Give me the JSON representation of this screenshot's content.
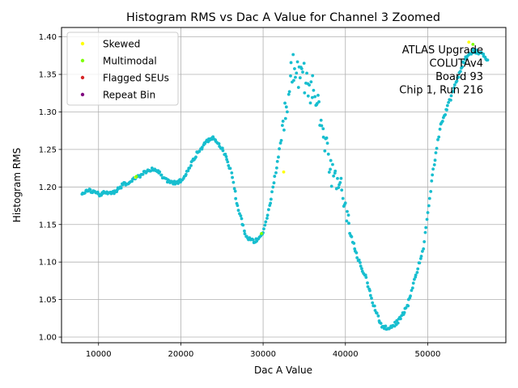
{
  "chart_data": {
    "type": "scatter",
    "title": "Histogram RMS vs Dac A Value for Channel 3 Zoomed",
    "xlabel": "Dac A Value",
    "ylabel": "Histogram RMS",
    "xlim": [
      5500,
      59500
    ],
    "ylim": [
      0.9925,
      1.4125
    ],
    "xticks": [
      10000,
      20000,
      30000,
      40000,
      50000
    ],
    "xtick_labels": [
      "10000",
      "20000",
      "30000",
      "40000",
      "50000"
    ],
    "yticks": [
      1.0,
      1.05,
      1.1,
      1.15,
      1.2,
      1.25,
      1.3,
      1.35,
      1.4
    ],
    "ytick_labels": [
      "1.00",
      "1.05",
      "1.10",
      "1.15",
      "1.20",
      "1.25",
      "1.30",
      "1.35",
      "1.40"
    ],
    "grid": true,
    "legend_position": "top-left",
    "annotation_lines": [
      "ATLAS Upgrade",
      "COLUTAv4",
      "Board 93",
      "Chip 1, Run 216"
    ],
    "series": [
      {
        "name": "Data",
        "color": "#17becf",
        "in_legend": false,
        "anchors": [
          [
            8000,
            1.193
          ],
          [
            9000,
            1.195
          ],
          [
            10000,
            1.19
          ],
          [
            11000,
            1.193
          ],
          [
            12000,
            1.193
          ],
          [
            13000,
            1.204
          ],
          [
            14000,
            1.208
          ],
          [
            15000,
            1.215
          ],
          [
            16000,
            1.222
          ],
          [
            17000,
            1.224
          ],
          [
            18000,
            1.211
          ],
          [
            19000,
            1.205
          ],
          [
            20000,
            1.208
          ],
          [
            21000,
            1.225
          ],
          [
            22000,
            1.245
          ],
          [
            23000,
            1.26
          ],
          [
            24000,
            1.265
          ],
          [
            25000,
            1.252
          ],
          [
            26000,
            1.225
          ],
          [
            27000,
            1.17
          ],
          [
            28000,
            1.132
          ],
          [
            29000,
            1.127
          ],
          [
            30000,
            1.14
          ],
          [
            31000,
            1.185
          ],
          [
            32000,
            1.25
          ],
          [
            33000,
            1.32
          ],
          [
            33500,
            1.358
          ],
          [
            34500,
            1.35
          ],
          [
            35500,
            1.335
          ],
          [
            36500,
            1.32
          ],
          [
            37000,
            1.3
          ],
          [
            37500,
            1.26
          ],
          [
            38500,
            1.215
          ],
          [
            39500,
            1.2
          ],
          [
            40500,
            1.142
          ],
          [
            41500,
            1.105
          ],
          [
            42500,
            1.08
          ],
          [
            43500,
            1.04
          ],
          [
            44500,
            1.012
          ],
          [
            45500,
            1.013
          ],
          [
            46500,
            1.022
          ],
          [
            47500,
            1.04
          ],
          [
            48500,
            1.08
          ],
          [
            49500,
            1.12
          ],
          [
            50500,
            1.21
          ],
          [
            51500,
            1.28
          ],
          [
            52500,
            1.31
          ],
          [
            53500,
            1.34
          ],
          [
            54500,
            1.37
          ],
          [
            55500,
            1.382
          ],
          [
            56500,
            1.378
          ],
          [
            57300,
            1.37
          ]
        ]
      },
      {
        "name": "Skewed",
        "color": "#ffff00",
        "in_legend": true,
        "points": [
          [
            55000,
            1.393
          ],
          [
            32500,
            1.22
          ],
          [
            14500,
            1.213
          ]
        ]
      },
      {
        "name": "Multimodal",
        "color": "#7fff00",
        "in_legend": true,
        "points": [
          [
            29800,
            1.138
          ],
          [
            55500,
            1.39
          ],
          [
            14600,
            1.214
          ]
        ]
      },
      {
        "name": "Flagged SEUs",
        "color": "#d62728",
        "in_legend": true,
        "points": []
      },
      {
        "name": "Repeat Bin",
        "color": "#800080",
        "in_legend": true,
        "points": []
      }
    ]
  }
}
